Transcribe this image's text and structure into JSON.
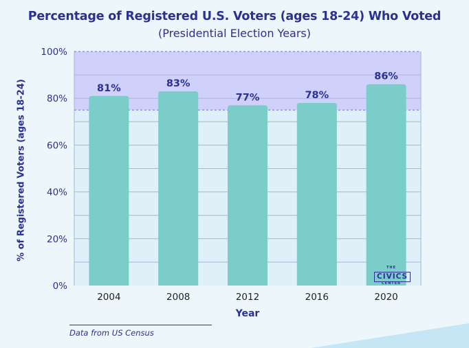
{
  "title": "Percentage of Registered U.S. Voters (ages 18-24) Who Voted",
  "subtitle": "(Presidential Election Years)",
  "ylabel": "% of Registered Voters (ages 18-24)",
  "xlabel": "Year",
  "source": "Data from US Census",
  "logo": {
    "top": "THE",
    "main": "CIVICS",
    "bottom": "CENTER"
  },
  "colors": {
    "bar": "#7acdc8",
    "plot_bg": "#dff0f9",
    "highlight": "#cfd1fa",
    "grid": "#a9b3df",
    "text": "#2b3190"
  },
  "chart_data": {
    "type": "bar",
    "categories": [
      "2004",
      "2008",
      "2012",
      "2016",
      "2020"
    ],
    "values": [
      81,
      83,
      77,
      78,
      86
    ],
    "value_labels": [
      "81%",
      "83%",
      "77%",
      "78%",
      "86%"
    ],
    "ylim": [
      0,
      100
    ],
    "yticks": [
      0,
      20,
      40,
      60,
      80,
      100
    ],
    "ytick_labels": [
      "0%",
      "20%",
      "40%",
      "60%",
      "80%",
      "100%"
    ],
    "highlight_band": [
      75,
      100
    ],
    "grid": true
  }
}
